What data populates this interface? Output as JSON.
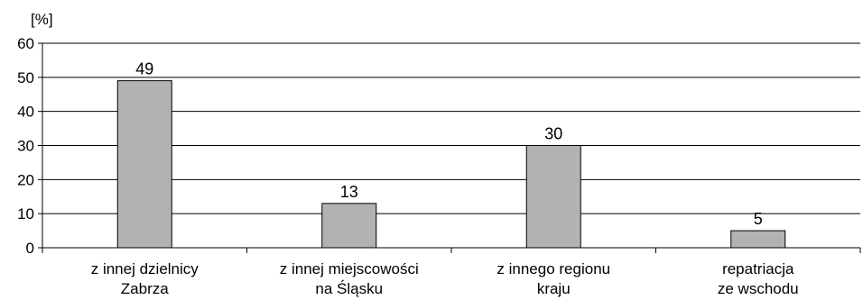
{
  "chart_data": {
    "type": "bar",
    "unit_label": "[%]",
    "categories": [
      [
        "z innej dzielnicy",
        "Zabrza"
      ],
      [
        "z innej miejscowości",
        "na Śląsku"
      ],
      [
        "z innego regionu",
        "kraju"
      ],
      [
        "repatriacja",
        "ze wschodu"
      ]
    ],
    "values": [
      49,
      13,
      30,
      5
    ],
    "data_labels": [
      "49",
      "13",
      "30",
      "5"
    ],
    "yticks": [
      "0",
      "10",
      "20",
      "30",
      "40",
      "50",
      "60"
    ],
    "ylim": [
      0,
      60
    ],
    "grid": true,
    "bar_color": "#b2b2b2",
    "bar_stroke": "#000000"
  }
}
